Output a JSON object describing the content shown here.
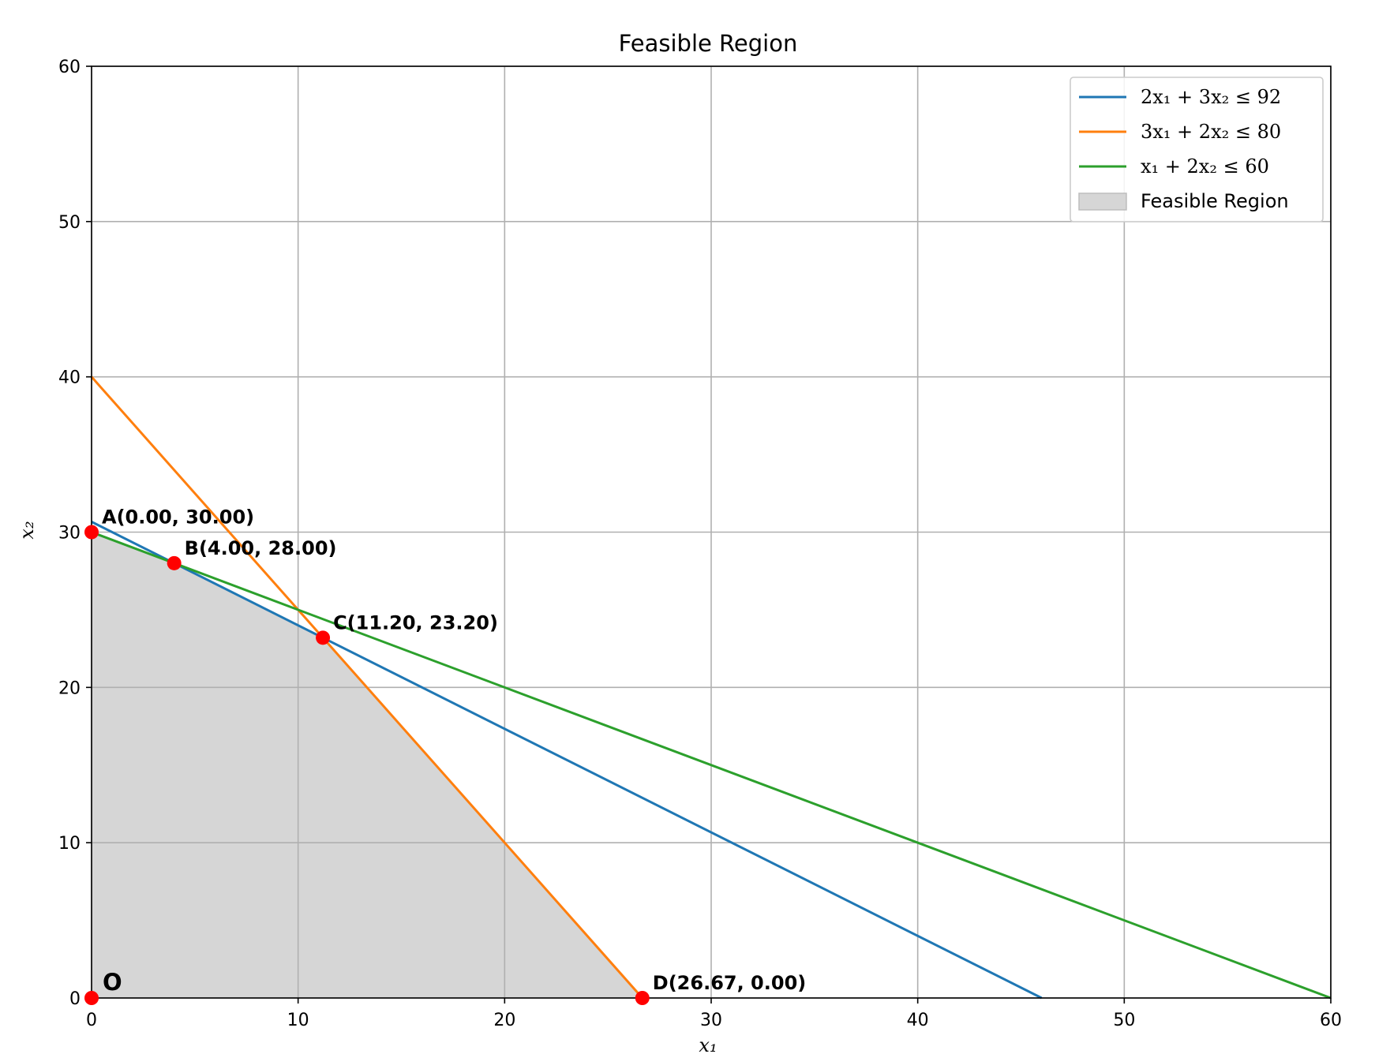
{
  "chart_data": {
    "type": "line",
    "title": "Feasible Region",
    "xlabel": "x₁",
    "ylabel": "x₂",
    "xlim": [
      0,
      60
    ],
    "ylim": [
      0,
      60
    ],
    "xticks": [
      0,
      10,
      20,
      30,
      40,
      50,
      60
    ],
    "yticks": [
      0,
      10,
      20,
      30,
      40,
      50,
      60
    ],
    "grid": true,
    "legend_position": "top-right",
    "series": [
      {
        "name": "2x₁ + 3x₂ ≤ 92",
        "color": "#1f77b4",
        "x": [
          0,
          46
        ],
        "y": [
          30.667,
          0
        ]
      },
      {
        "name": "3x₁ + 2x₂ ≤ 80",
        "color": "#ff7f0e",
        "x": [
          0,
          26.667
        ],
        "y": [
          40,
          0
        ]
      },
      {
        "name": "x₁ + 2x₂ ≤ 60",
        "color": "#2ca02c",
        "x": [
          0,
          60
        ],
        "y": [
          30,
          0
        ]
      }
    ],
    "feasible_region": {
      "name": "Feasible Region",
      "color": "#d6d6d6",
      "vertices": [
        [
          0,
          0
        ],
        [
          0,
          30
        ],
        [
          4,
          28
        ],
        [
          11.2,
          23.2
        ],
        [
          26.667,
          0
        ]
      ]
    },
    "points": [
      {
        "label": "A(0.00, 30.00)",
        "x": 0,
        "y": 30
      },
      {
        "label": "B(4.00, 28.00)",
        "x": 4,
        "y": 28
      },
      {
        "label": "C(11.20, 23.20)",
        "x": 11.2,
        "y": 23.2
      },
      {
        "label": "D(26.67, 0.00)",
        "x": 26.667,
        "y": 0
      },
      {
        "label": "O",
        "x": 0,
        "y": 0
      }
    ],
    "point_color": "#ff0000"
  }
}
